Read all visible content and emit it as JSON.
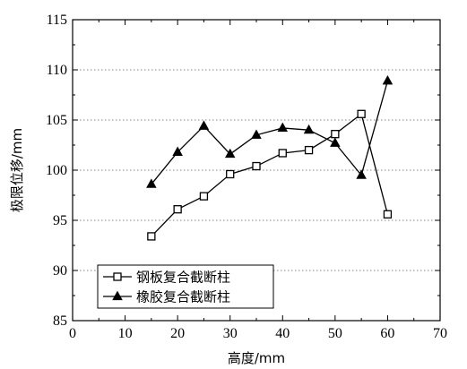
{
  "chart_data": {
    "type": "line",
    "xlabel": "高度/mm",
    "ylabel": "极限位移/mm",
    "xlim": [
      0,
      70
    ],
    "ylim": [
      85,
      115
    ],
    "x_ticks": [
      0,
      10,
      20,
      30,
      40,
      50,
      60,
      70
    ],
    "y_ticks": [
      85,
      90,
      95,
      100,
      105,
      110,
      115
    ],
    "grid": "horizontal-dotted",
    "legend_position": "bottom-left",
    "series": [
      {
        "name": "钢板复合截断柱",
        "marker": "open-square",
        "color": "#000000",
        "x": [
          15,
          20,
          25,
          30,
          35,
          40,
          45,
          50,
          55,
          60
        ],
        "y": [
          93.4,
          96.1,
          97.4,
          99.6,
          100.4,
          101.7,
          102.0,
          103.6,
          105.6,
          95.6
        ]
      },
      {
        "name": "橡胶复合截断柱",
        "marker": "filled-triangle",
        "color": "#000000",
        "x": [
          15,
          20,
          25,
          30,
          35,
          40,
          45,
          50,
          55,
          60
        ],
        "y": [
          98.6,
          101.8,
          104.4,
          101.6,
          103.5,
          104.2,
          104.0,
          102.7,
          99.5,
          108.9
        ]
      }
    ]
  }
}
